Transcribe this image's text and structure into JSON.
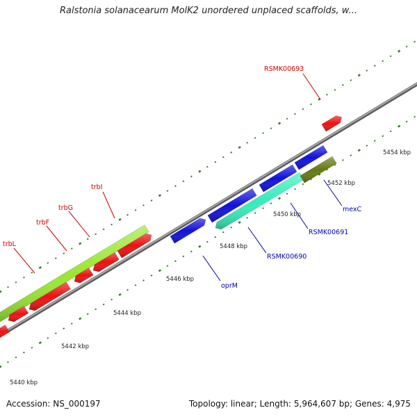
{
  "title": "Ralstonia solanacearum MolK2 unordered unplaced scaffolds, w...",
  "footer": {
    "accession": "Accession: NS_000197",
    "stats": "Topology: linear; Length: 5,964,607 bp; Genes: 4,975"
  },
  "colors": {
    "backbone": "#8a8a8a",
    "tick": "#2e7d22",
    "red_gene": "#ee1111",
    "blue_gene": "#1111dd",
    "lime_gene": "#99e633",
    "aqua_gene": "#33eebb",
    "olive_gene": "#667a11",
    "red_label": "#cc0000",
    "blue_label": "#0000aa"
  },
  "scale_labels": [
    "5440 kbp",
    "5442 kbp",
    "5444 kbp",
    "5446 kbp",
    "5448 kbp",
    "5450 kbp",
    "5452 kbp",
    "5454 kbp"
  ],
  "gene_labels": [
    {
      "id": "trbL",
      "text": "trbL",
      "color": "red"
    },
    {
      "id": "trbF",
      "text": "trbF",
      "color": "red"
    },
    {
      "id": "trbG",
      "text": "trbG",
      "color": "red"
    },
    {
      "id": "trbI",
      "text": "trbI",
      "color": "red"
    },
    {
      "id": "RSMK00693",
      "text": "RSMK00693",
      "color": "red"
    },
    {
      "id": "oprM",
      "text": "oprM",
      "color": "blue"
    },
    {
      "id": "RSMK00690",
      "text": "RSMK00690",
      "color": "blue"
    },
    {
      "id": "RSMK00691",
      "text": "RSMK00691",
      "color": "blue"
    },
    {
      "id": "mexC",
      "text": "mexC",
      "color": "blue"
    }
  ]
}
